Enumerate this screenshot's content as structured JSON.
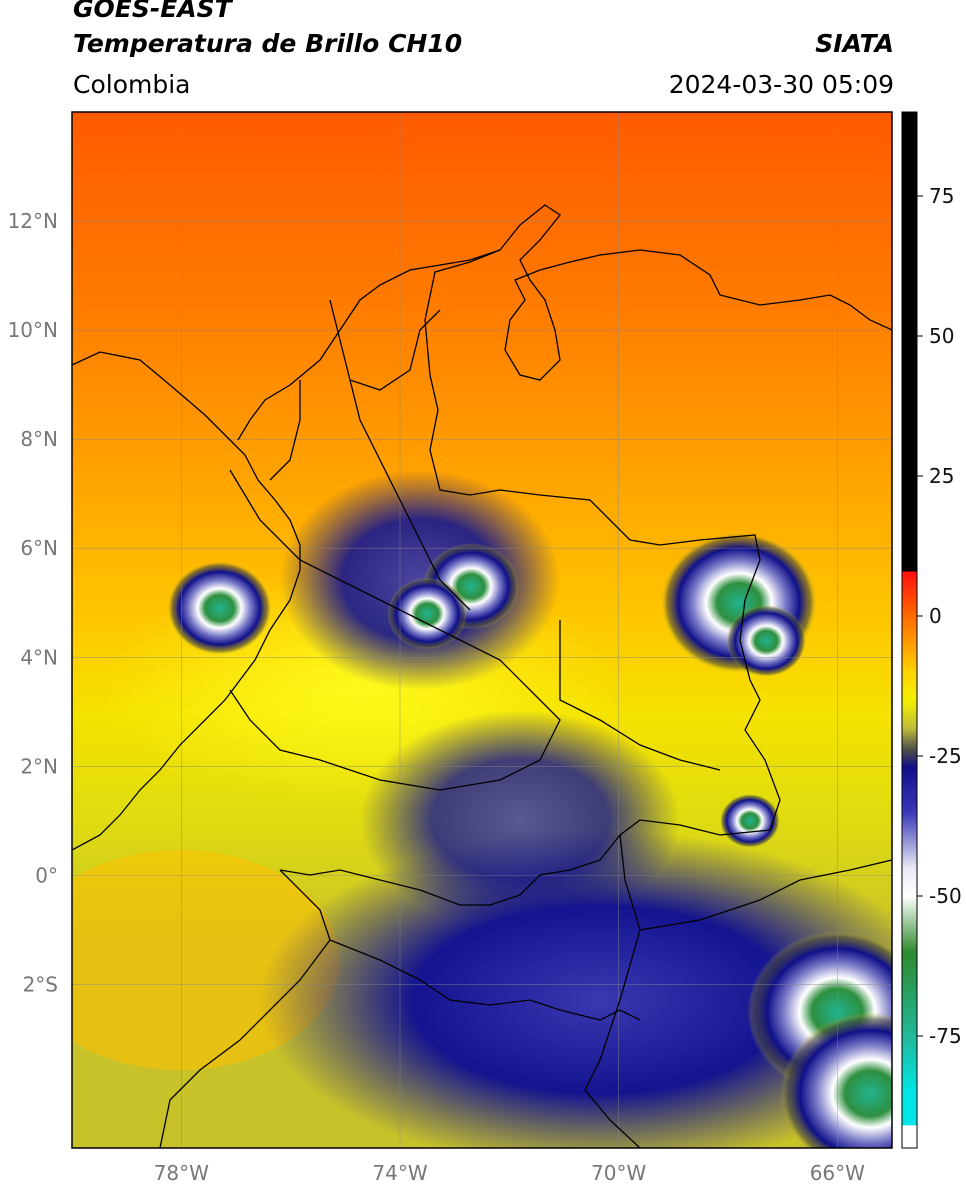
{
  "header": {
    "title_line1": "GOES-EAST",
    "title_line2": "Temperatura de Brillo CH10",
    "agency": "SIATA",
    "region": "Colombia",
    "timestamp": "2024-03-30 05:09"
  },
  "map": {
    "lat_range": [
      -5,
      14
    ],
    "lon_range": [
      -80,
      -65
    ],
    "lat_ticks": [
      {
        "value": 12,
        "label": "12°N"
      },
      {
        "value": 10,
        "label": "10°N"
      },
      {
        "value": 8,
        "label": "8°N"
      },
      {
        "value": 6,
        "label": "6°N"
      },
      {
        "value": 4,
        "label": "4°N"
      },
      {
        "value": 2,
        "label": "2°N"
      },
      {
        "value": 0,
        "label": "0°"
      },
      {
        "value": -2,
        "label": "2°S"
      }
    ],
    "lon_ticks": [
      {
        "value": -78,
        "label": "78°W"
      },
      {
        "value": -74,
        "label": "74°W"
      },
      {
        "value": -70,
        "label": "70°W"
      },
      {
        "value": -66,
        "label": "66°W"
      }
    ],
    "storm_cells": [
      {
        "lon": -77.3,
        "lat": 4.9
      },
      {
        "lon": -72.7,
        "lat": 5.3
      },
      {
        "lon": -73.5,
        "lat": 4.8
      },
      {
        "lon": -67.8,
        "lat": 5.0
      },
      {
        "lon": -67.3,
        "lat": 4.3
      },
      {
        "lon": -67.6,
        "lat": 1.0
      },
      {
        "lon": -66.0,
        "lat": -2.5
      },
      {
        "lon": -65.4,
        "lat": -4.0
      }
    ]
  },
  "colorbar": {
    "range": [
      -95,
      90
    ],
    "ticks": [
      {
        "value": 75,
        "label": "75"
      },
      {
        "value": 50,
        "label": "50"
      },
      {
        "value": 25,
        "label": "25"
      },
      {
        "value": 0,
        "label": "0"
      },
      {
        "value": -25,
        "label": "-25"
      },
      {
        "value": -50,
        "label": "-50"
      },
      {
        "value": -75,
        "label": "-75"
      }
    ],
    "stops": [
      {
        "value": 90,
        "color": "#000000"
      },
      {
        "value": 8,
        "color": "#000000"
      },
      {
        "value": 7.9,
        "color": "#ff1010"
      },
      {
        "value": 0,
        "color": "#ff6a00"
      },
      {
        "value": -10,
        "color": "#ffd200"
      },
      {
        "value": -15,
        "color": "#f5f000"
      },
      {
        "value": -20,
        "color": "#c0bd3a"
      },
      {
        "value": -24,
        "color": "#4a4a4a"
      },
      {
        "value": -27,
        "color": "#10108a"
      },
      {
        "value": -35,
        "color": "#3838b8"
      },
      {
        "value": -45,
        "color": "#e9e9f5"
      },
      {
        "value": -50,
        "color": "#ffffff"
      },
      {
        "value": -60,
        "color": "#2e8a2e"
      },
      {
        "value": -75,
        "color": "#22b899"
      },
      {
        "value": -85,
        "color": "#00e6e6"
      },
      {
        "value": -90.9,
        "color": "#00e6e6"
      },
      {
        "value": -91,
        "color": "#ffffff"
      },
      {
        "value": -95,
        "color": "#ffffff"
      }
    ]
  }
}
